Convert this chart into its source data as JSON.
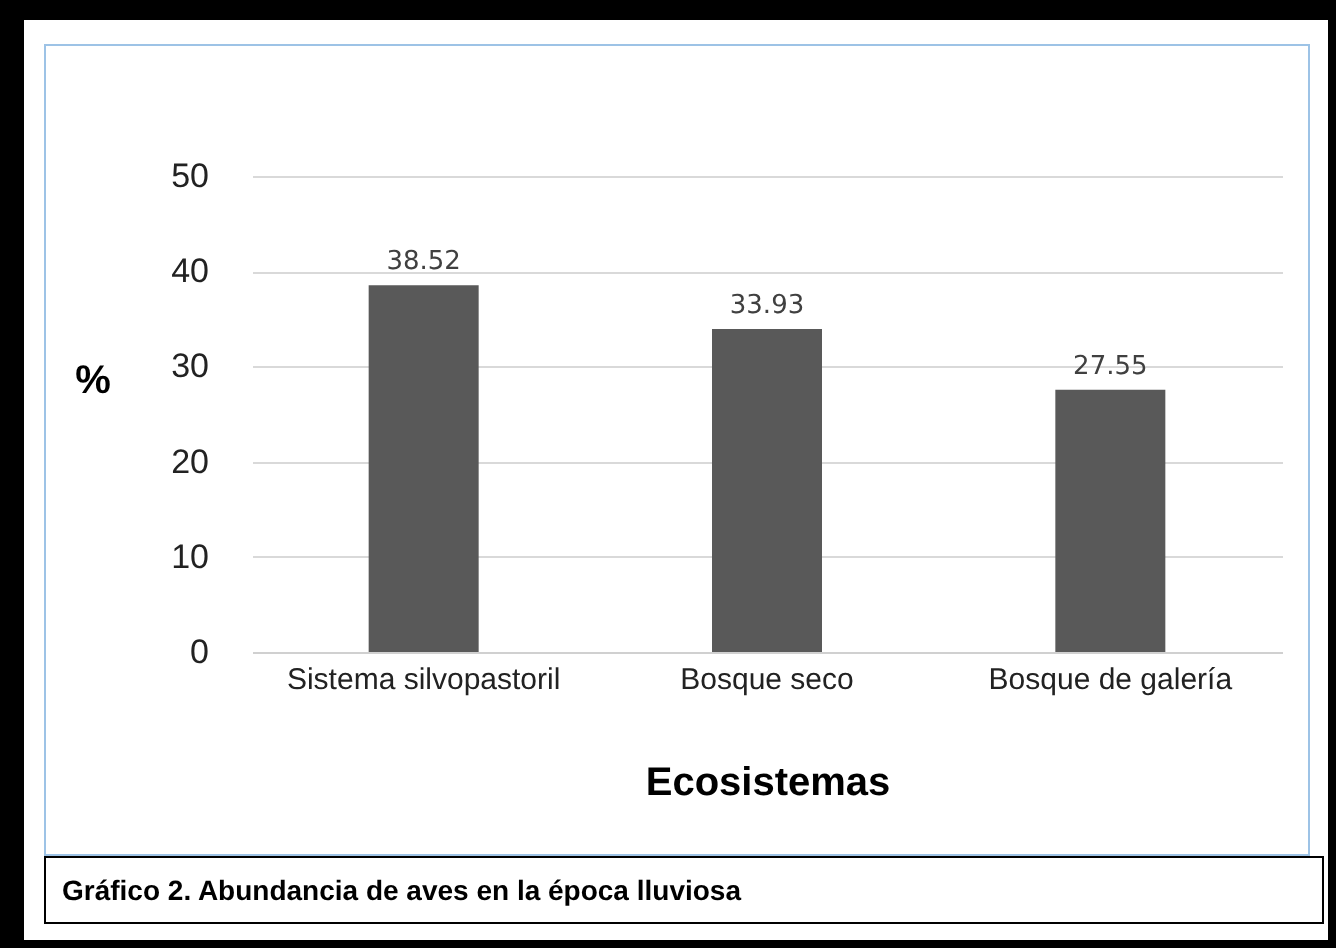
{
  "chart_data": {
    "type": "bar",
    "xlabel": "Ecosistemas",
    "ylabel": "%",
    "categories": [
      "Sistema silvopastoril",
      "Bosque seco",
      "Bosque de galería"
    ],
    "values": [
      38.52,
      33.93,
      27.55
    ],
    "color": "#595959",
    "ylim": [
      0,
      50
    ],
    "yticks": [
      0,
      10,
      20,
      30,
      40,
      50
    ],
    "grid": "y",
    "data_labels": true,
    "annotations": [
      "Gráfico 2. Abundancia de aves en la época lluviosa"
    ]
  }
}
